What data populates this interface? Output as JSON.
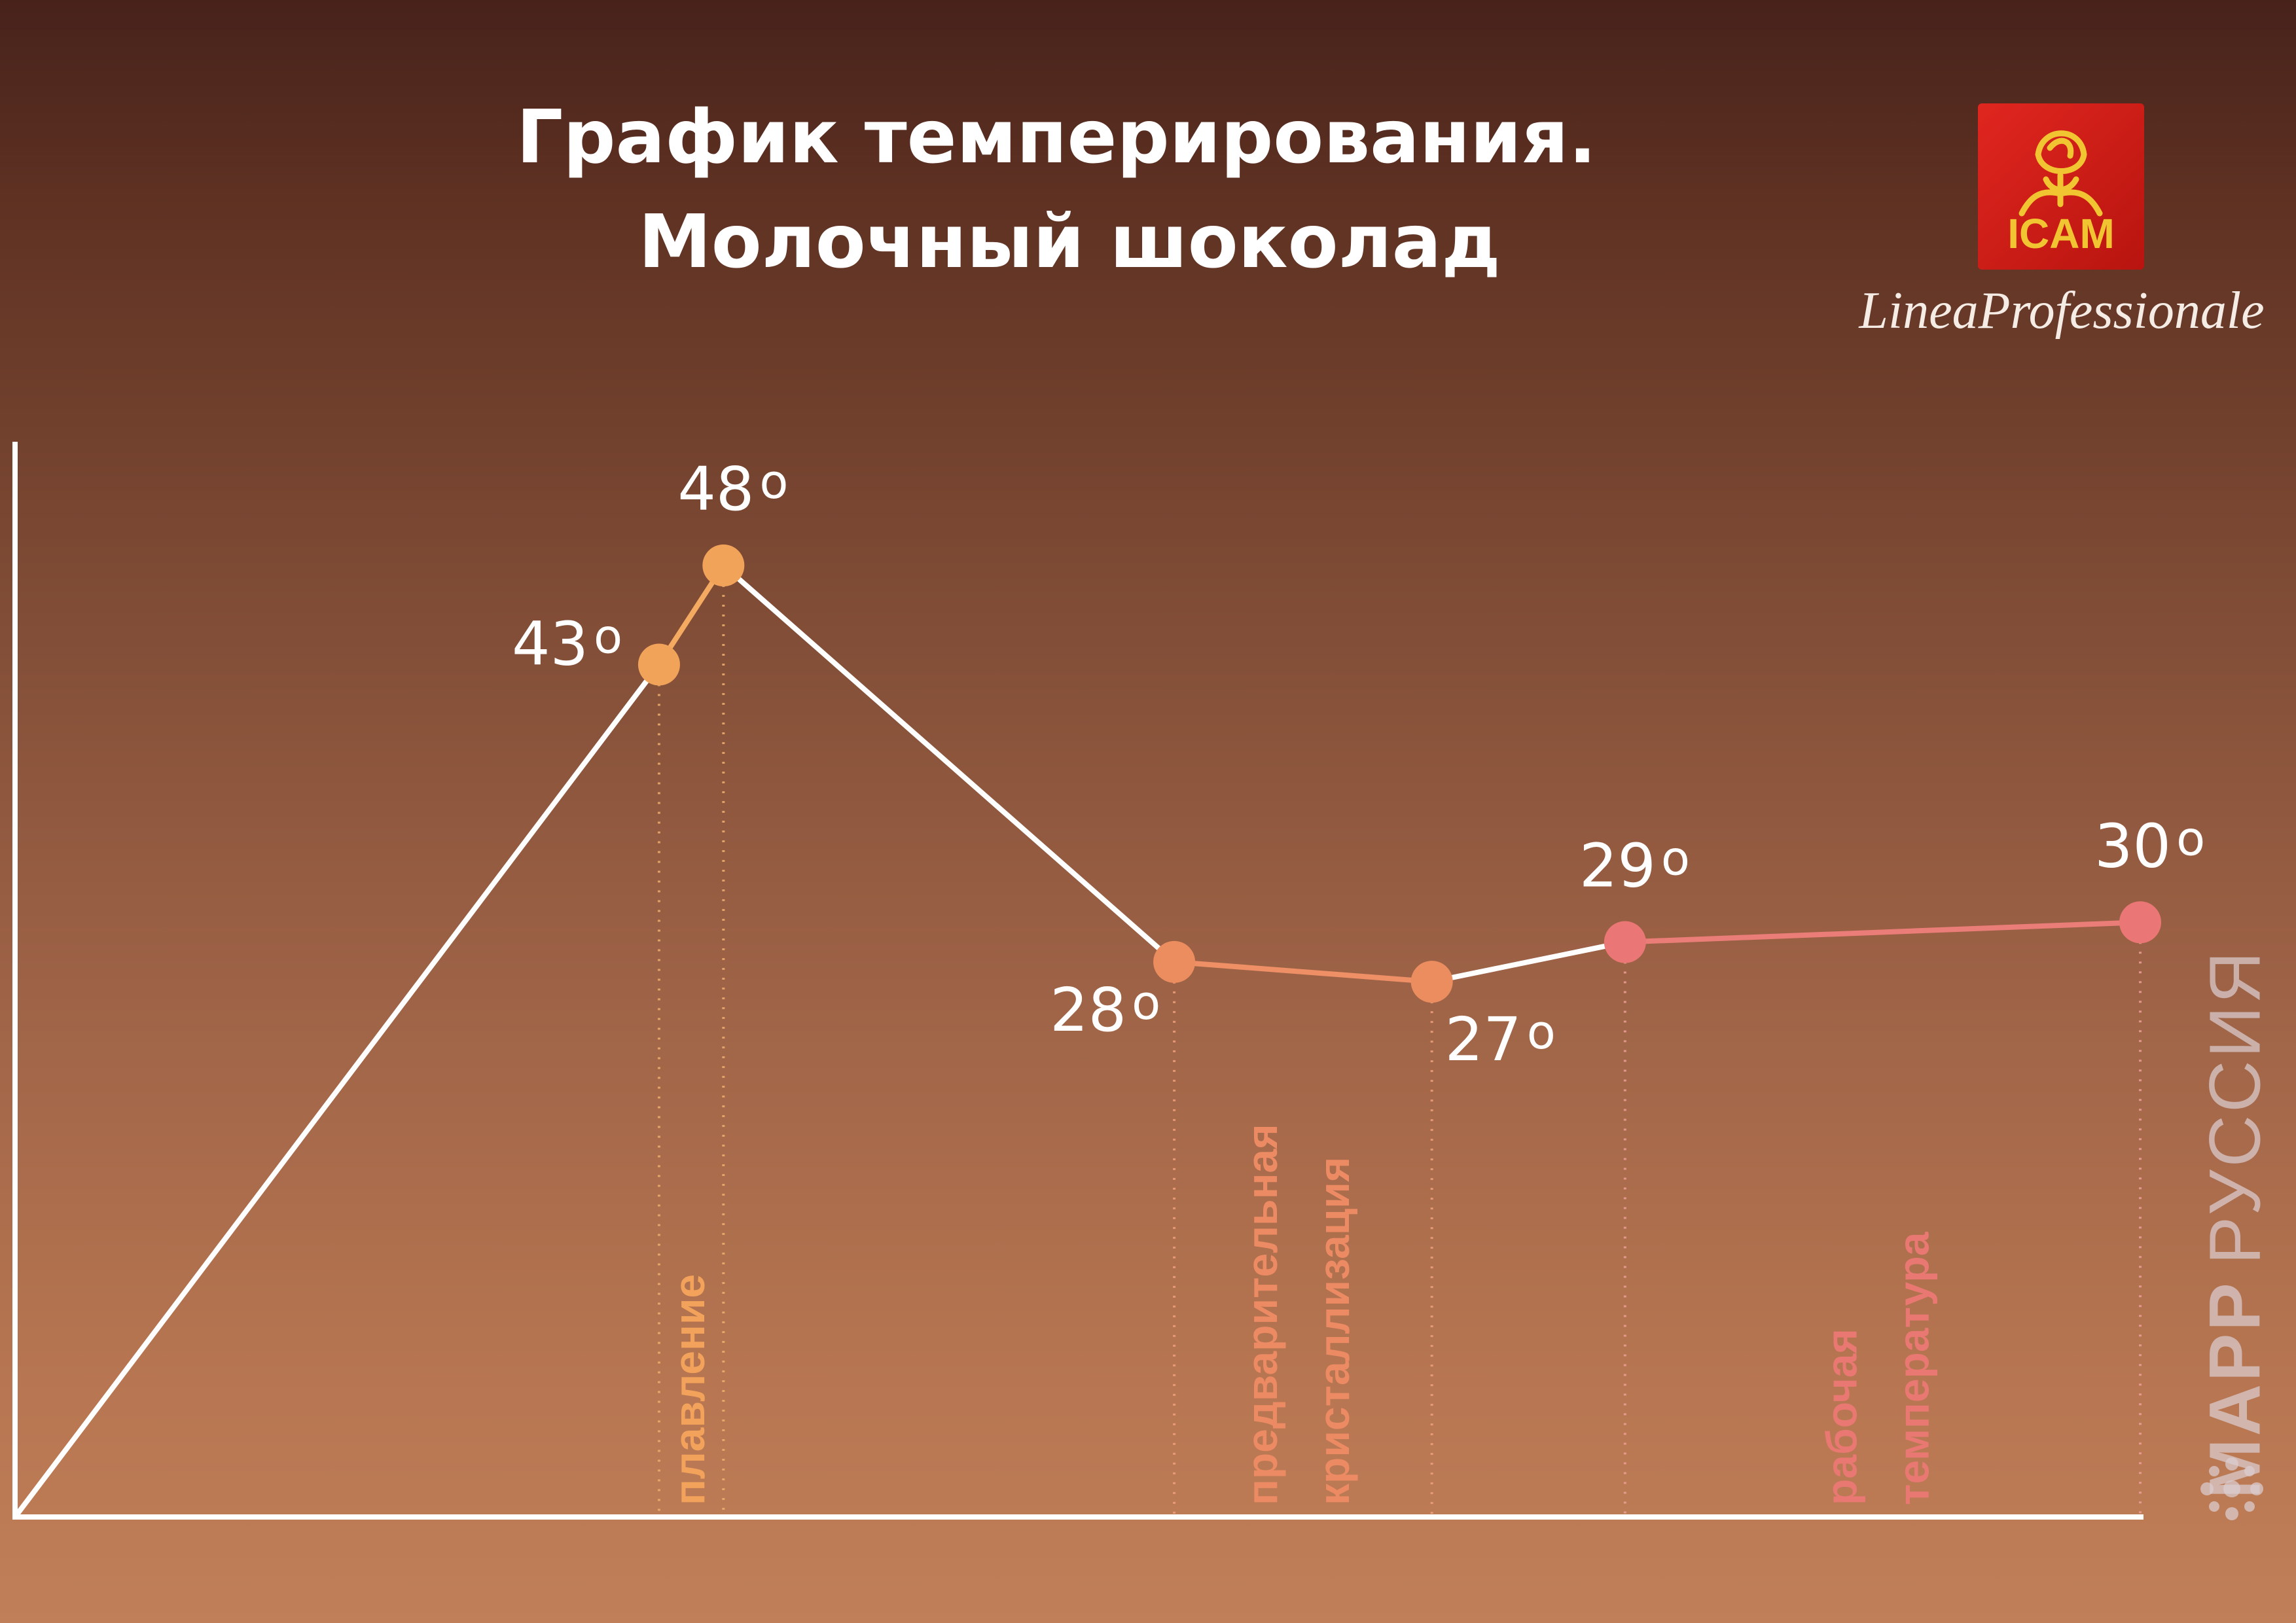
{
  "header": {
    "title_line1": "График темперирования.",
    "title_line2": "Молочный шоколад"
  },
  "brand": {
    "logo_text": "ICAM",
    "line": "LineaProfessionale",
    "logo_color": "#d81f18",
    "logo_text_color": "#f1c531",
    "watermark_bold": "MAPP",
    "watermark_text": "РУССИЯ"
  },
  "chart_data": {
    "type": "line",
    "title": "График темперирования. Молочный шоколад",
    "xlabel": "",
    "ylabel": "",
    "ylim": [
      0,
      55
    ],
    "grid": false,
    "points": [
      {
        "label": "",
        "x": 0,
        "y": 0
      },
      {
        "label": "43°",
        "x": 10,
        "y": 43
      },
      {
        "label": "48°",
        "x": 11,
        "y": 48
      },
      {
        "label": "28°",
        "x": 18,
        "y": 28
      },
      {
        "label": "27°",
        "x": 22,
        "y": 27
      },
      {
        "label": "29°",
        "x": 25,
        "y": 29
      },
      {
        "label": "30°",
        "x": 33,
        "y": 30
      }
    ],
    "phases": [
      {
        "label": "плавление",
        "from_x": 10,
        "to_x": 11,
        "color": "#f2a25a"
      },
      {
        "label": "предварительная кристаллизация",
        "from_x": 18,
        "to_x": 22,
        "color": "#ec8a63"
      },
      {
        "label": "рабочая температура",
        "from_x": 25,
        "to_x": 33,
        "color": "#e97873"
      }
    ],
    "segment_colors": [
      "#ffffff",
      "#f4aa60",
      "#ffffff",
      "#ee8f66",
      "#ffffff",
      "#ea7d78"
    ],
    "point_colors": [
      "#f2a35a",
      "#f2a35a",
      "#ec8d5f",
      "#ec8d5f",
      "#ea7775",
      "#ea7775"
    ],
    "value_labels": [
      "43",
      "48",
      "28",
      "27",
      "29",
      "30"
    ],
    "unit": "о"
  }
}
